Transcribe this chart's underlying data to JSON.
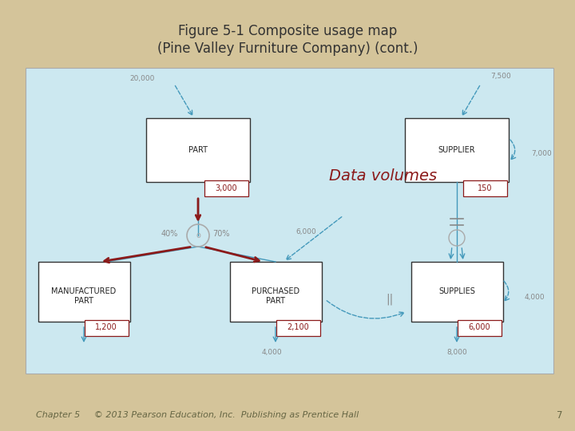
{
  "title_line1": "Figure 5-1 Composite usage map",
  "title_line2": "(Pine Valley Furniture Company) (cont.)",
  "footer": "Chapter 5     © 2013 Pearson Education, Inc.  Publishing as Prentice Hall",
  "page_num": "7",
  "bg_color": "#cce8f0",
  "outer_bg": "#d4c49a",
  "data_volumes_text": "Data volumes",
  "arrow_color_dark": "#8b1a1a",
  "arrow_color_light": "#4499bb",
  "title_color": "#333333",
  "footer_color": "#666644",
  "label_color": "#888888"
}
